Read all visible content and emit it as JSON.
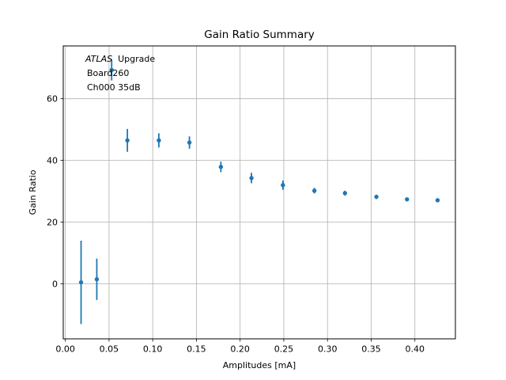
{
  "figure": {
    "background": "#ffffff"
  },
  "chart_data": {
    "type": "scatter",
    "title": "Gain Ratio Summary",
    "xlabel": "Amplitudes [mA]",
    "ylabel": "Gain Ratio",
    "annotation": {
      "line1_italic": "ATLAS",
      "line1_rest": "Upgrade",
      "line2": "Board260",
      "line3": "Ch000 35dB"
    },
    "series": [
      {
        "name": "gain_ratio_vs_amplitude",
        "color": "#1f77b4",
        "x": [
          0.018,
          0.036,
          0.053,
          0.071,
          0.107,
          0.142,
          0.178,
          0.213,
          0.249,
          0.285,
          0.32,
          0.356,
          0.391,
          0.426
        ],
        "y": [
          0.5,
          1.5,
          69.3,
          46.5,
          46.5,
          45.8,
          37.9,
          34.3,
          32.0,
          30.2,
          29.4,
          28.2,
          27.4,
          27.1
        ],
        "yerr": [
          13.5,
          6.7,
          3.4,
          3.7,
          2.3,
          2.0,
          1.7,
          1.7,
          1.5,
          0.9,
          0.8,
          0.7,
          0.5,
          0.4
        ]
      }
    ],
    "xlim": [
      -0.0024,
      0.4464
    ],
    "ylim": [
      -17.8,
      77.1
    ],
    "xticks": [
      0.0,
      0.05,
      0.1,
      0.15,
      0.2,
      0.25,
      0.3,
      0.35,
      0.4
    ],
    "xtick_labels": [
      "0.00",
      "0.05",
      "0.10",
      "0.15",
      "0.20",
      "0.25",
      "0.30",
      "0.35",
      "0.40"
    ],
    "yticks": [
      0,
      20,
      40,
      60
    ],
    "ytick_labels": [
      "0",
      "20",
      "40",
      "60"
    ],
    "grid": true,
    "grid_color": "#b0b0b0",
    "axis_color": "#000000",
    "legend": "none"
  }
}
